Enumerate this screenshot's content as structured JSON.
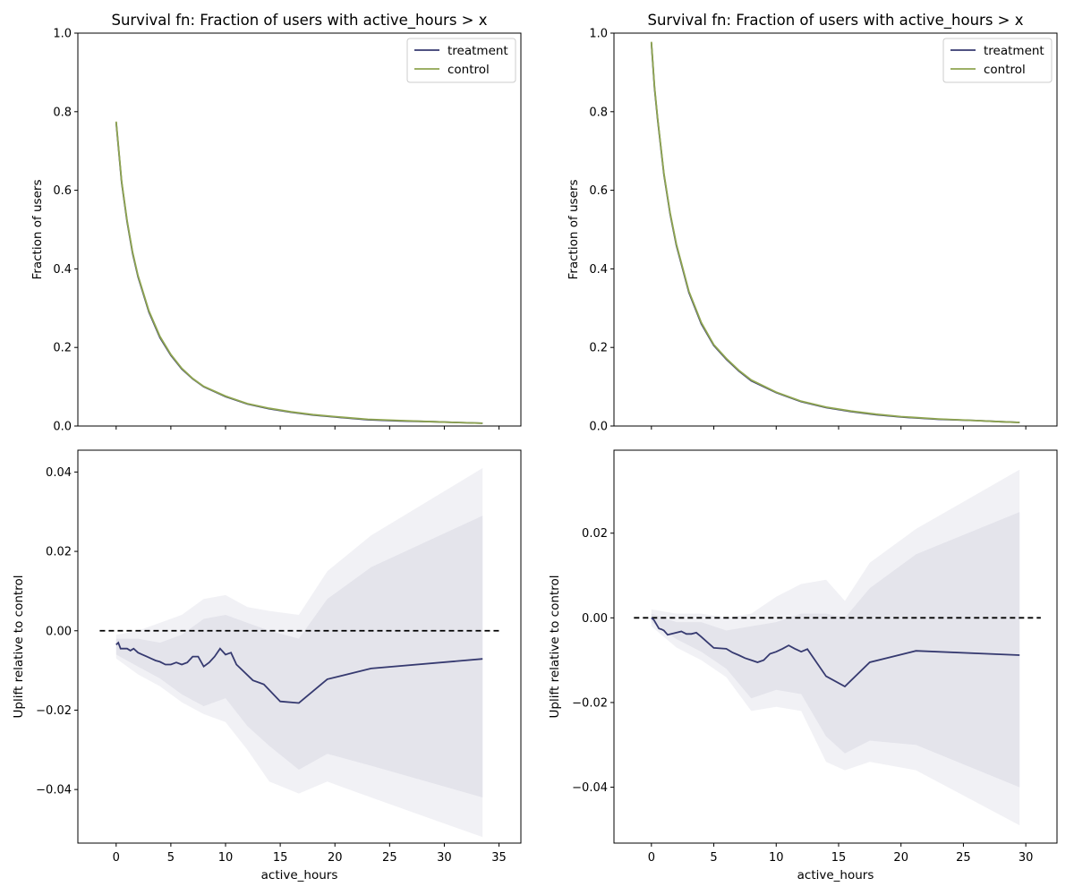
{
  "chart_data": [
    {
      "type": "line",
      "panel": "survival-left",
      "title": "Survival fn: Fraction of users with active_hours > x",
      "xlabel": "",
      "ylabel": "Fraction of users",
      "xlim": [
        -3.5,
        37
      ],
      "ylim": [
        0,
        1.0
      ],
      "xticks": [
        0,
        5,
        10,
        15,
        20,
        25,
        30,
        35
      ],
      "yticks": [
        0.0,
        0.2,
        0.4,
        0.6,
        0.8,
        1.0
      ],
      "ytick_labels": [
        "0.0",
        "0.2",
        "0.4",
        "0.6",
        "0.8",
        "1.0"
      ],
      "grid": false,
      "legend": {
        "position": "top-right",
        "entries": [
          "treatment",
          "control"
        ]
      },
      "series": [
        {
          "name": "treatment",
          "color": "#363a70",
          "x": [
            0,
            0.5,
            1,
            1.5,
            2,
            3,
            4,
            5,
            6,
            7,
            8,
            10,
            12,
            14,
            16,
            18,
            20,
            23,
            26,
            29,
            31,
            33.5
          ],
          "y": [
            0.772,
            0.62,
            0.52,
            0.44,
            0.38,
            0.29,
            0.225,
            0.18,
            0.145,
            0.12,
            0.1,
            0.075,
            0.056,
            0.044,
            0.035,
            0.028,
            0.023,
            0.016,
            0.013,
            0.011,
            0.009,
            0.007
          ]
        },
        {
          "name": "control",
          "color": "#8fa550",
          "x": [
            0,
            0.5,
            1,
            1.5,
            2,
            3,
            4,
            5,
            6,
            7,
            8,
            10,
            12,
            14,
            16,
            18,
            20,
            23,
            26,
            29,
            31,
            33.5
          ],
          "y": [
            0.775,
            0.623,
            0.523,
            0.443,
            0.383,
            0.293,
            0.228,
            0.182,
            0.147,
            0.121,
            0.101,
            0.076,
            0.057,
            0.045,
            0.036,
            0.029,
            0.024,
            0.017,
            0.014,
            0.011,
            0.009,
            0.007
          ]
        }
      ]
    },
    {
      "type": "line",
      "panel": "survival-right",
      "title": "Survival fn: Fraction of users with active_hours > x",
      "xlabel": "",
      "ylabel": "Fraction of users",
      "xlim": [
        -3,
        32.5
      ],
      "ylim": [
        0,
        1.0
      ],
      "xticks": [
        0,
        5,
        10,
        15,
        20,
        25,
        30
      ],
      "yticks": [
        0.0,
        0.2,
        0.4,
        0.6,
        0.8,
        1.0
      ],
      "ytick_labels": [
        "0.0",
        "0.2",
        "0.4",
        "0.6",
        "0.8",
        "1.0"
      ],
      "grid": false,
      "legend": {
        "position": "top-right",
        "entries": [
          "treatment",
          "control"
        ]
      },
      "series": [
        {
          "name": "treatment",
          "color": "#363a70",
          "x": [
            0,
            0.25,
            0.5,
            1,
            1.5,
            2,
            3,
            4,
            5,
            6,
            7,
            8,
            10,
            12,
            14,
            16,
            18,
            20,
            23,
            26,
            28,
            29.5
          ],
          "y": [
            0.975,
            0.86,
            0.78,
            0.64,
            0.54,
            0.46,
            0.34,
            0.26,
            0.205,
            0.17,
            0.14,
            0.115,
            0.085,
            0.062,
            0.047,
            0.037,
            0.029,
            0.023,
            0.017,
            0.014,
            0.011,
            0.009
          ]
        },
        {
          "name": "control",
          "color": "#8fa550",
          "x": [
            0,
            0.25,
            0.5,
            1,
            1.5,
            2,
            3,
            4,
            5,
            6,
            7,
            8,
            10,
            12,
            14,
            16,
            18,
            20,
            23,
            26,
            28,
            29.5
          ],
          "y": [
            0.978,
            0.863,
            0.783,
            0.643,
            0.543,
            0.463,
            0.343,
            0.263,
            0.207,
            0.172,
            0.142,
            0.117,
            0.086,
            0.063,
            0.048,
            0.038,
            0.03,
            0.024,
            0.018,
            0.014,
            0.011,
            0.009
          ]
        }
      ]
    },
    {
      "type": "line",
      "panel": "uplift-left",
      "title": "",
      "xlabel": "active_hours",
      "ylabel": "Uplift relative to control",
      "xlim": [
        -3.5,
        37
      ],
      "ylim": [
        -0.0535,
        0.0455
      ],
      "xticks": [
        0,
        5,
        10,
        15,
        20,
        25,
        30,
        35
      ],
      "yticks": [
        -0.04,
        -0.02,
        0.0,
        0.02,
        0.04
      ],
      "ytick_labels": [
        "−0.04",
        "−0.02",
        "0.00",
        "0.02",
        "0.04"
      ],
      "grid": false,
      "reference_line": {
        "y": 0,
        "x_range": [
          -1.5,
          35.2
        ],
        "style": "dashed"
      },
      "series": [
        {
          "name": "",
          "color": "#363a70",
          "x": [
            0,
            0.2,
            0.4,
            0.6,
            0.8,
            1.0,
            1.3,
            1.6,
            2,
            2.4,
            2.8,
            3.2,
            3.6,
            4.0,
            4.5,
            5.0,
            5.5,
            6.0,
            6.5,
            7.0,
            7.5,
            8.0,
            8.5,
            9.0,
            9.5,
            10.0,
            10.5,
            11.0,
            12.5,
            13.5,
            15.0,
            16.7,
            19.3,
            23.3,
            33.5
          ],
          "y": [
            -0.0035,
            -0.003,
            -0.0045,
            -0.0045,
            -0.0045,
            -0.0045,
            -0.005,
            -0.0045,
            -0.0055,
            -0.006,
            -0.0065,
            -0.007,
            -0.0075,
            -0.0078,
            -0.0085,
            -0.0085,
            -0.008,
            -0.0085,
            -0.008,
            -0.0065,
            -0.0065,
            -0.009,
            -0.008,
            -0.0065,
            -0.0045,
            -0.006,
            -0.0055,
            -0.0085,
            -0.0125,
            -0.0135,
            -0.0178,
            -0.0182,
            -0.0122,
            -0.0095,
            -0.0071
          ]
        },
        {
          "name": "",
          "role": "band-inner",
          "color": "#363a70",
          "x": [
            0,
            2,
            4,
            6,
            8,
            10,
            12,
            14,
            16.7,
            19.3,
            23.3,
            33.5
          ],
          "upper": [
            -0.002,
            -0.002,
            -0.003,
            -0.001,
            0.003,
            0.004,
            0.002,
            0.0,
            -0.002,
            0.008,
            0.016,
            0.029
          ],
          "lower": [
            -0.006,
            -0.009,
            -0.012,
            -0.016,
            -0.019,
            -0.017,
            -0.024,
            -0.029,
            -0.035,
            -0.031,
            -0.034,
            -0.042
          ]
        },
        {
          "name": "",
          "role": "band-outer",
          "color": "#363a70",
          "x": [
            0,
            2,
            4,
            6,
            8,
            10,
            12,
            14,
            16.7,
            19.3,
            23.3,
            33.5
          ],
          "upper": [
            -0.001,
            0.0,
            0.002,
            0.004,
            0.008,
            0.009,
            0.006,
            0.005,
            0.004,
            0.015,
            0.024,
            0.041
          ],
          "lower": [
            -0.007,
            -0.011,
            -0.014,
            -0.018,
            -0.021,
            -0.023,
            -0.03,
            -0.038,
            -0.041,
            -0.038,
            -0.042,
            -0.052
          ]
        }
      ]
    },
    {
      "type": "line",
      "panel": "uplift-right",
      "title": "",
      "xlabel": "active_hours",
      "ylabel": "Uplift relative to control",
      "xlim": [
        -3,
        32.5
      ],
      "ylim": [
        -0.0532,
        0.0396
      ],
      "xticks": [
        0,
        5,
        10,
        15,
        20,
        25,
        30
      ],
      "yticks": [
        -0.04,
        -0.02,
        0.0,
        0.02
      ],
      "ytick_labels": [
        "−0.04",
        "−0.02",
        "0.00",
        "0.02"
      ],
      "grid": false,
      "reference_line": {
        "y": 0,
        "x_range": [
          -1.4,
          31.2
        ],
        "style": "dashed"
      },
      "series": [
        {
          "name": "",
          "color": "#363a70",
          "x": [
            0,
            0.2,
            0.4,
            0.6,
            0.8,
            1.0,
            1.3,
            1.6,
            2.0,
            2.4,
            2.8,
            3.2,
            3.6,
            4.0,
            4.5,
            5.0,
            5.5,
            6.0,
            6.5,
            7.0,
            7.5,
            8.0,
            8.5,
            9.0,
            9.5,
            10.0,
            10.5,
            11.0,
            11.5,
            12.0,
            12.5,
            14.0,
            15.5,
            17.5,
            21.2,
            29.5
          ],
          "y": [
            0.0,
            -0.0005,
            -0.0015,
            -0.0025,
            -0.0027,
            -0.003,
            -0.004,
            -0.0038,
            -0.0035,
            -0.0032,
            -0.0038,
            -0.0038,
            -0.0035,
            -0.0045,
            -0.0058,
            -0.0071,
            -0.0072,
            -0.0073,
            -0.0082,
            -0.0088,
            -0.0095,
            -0.01,
            -0.0105,
            -0.01,
            -0.0085,
            -0.008,
            -0.0073,
            -0.0065,
            -0.0073,
            -0.008,
            -0.0074,
            -0.0138,
            -0.0162,
            -0.0105,
            -0.0078,
            -0.0088
          ]
        },
        {
          "name": "",
          "role": "band-inner",
          "color": "#363a70",
          "x": [
            0,
            2,
            4,
            6,
            8,
            10,
            12,
            14,
            15.5,
            17.5,
            21.2,
            29.5
          ],
          "upper": [
            0.001,
            -0.001,
            -0.001,
            -0.003,
            -0.002,
            -0.001,
            0.001,
            0.001,
            0.0,
            0.007,
            0.015,
            0.025
          ],
          "lower": [
            -0.001,
            -0.005,
            -0.008,
            -0.012,
            -0.019,
            -0.017,
            -0.018,
            -0.028,
            -0.032,
            -0.029,
            -0.03,
            -0.04
          ]
        },
        {
          "name": "",
          "role": "band-outer",
          "color": "#363a70",
          "x": [
            0,
            2,
            4,
            6,
            8,
            10,
            12,
            14,
            15.5,
            17.5,
            21.2,
            29.5
          ],
          "upper": [
            0.002,
            0.001,
            0.001,
            0.0,
            0.001,
            0.005,
            0.008,
            0.009,
            0.004,
            0.013,
            0.021,
            0.035
          ],
          "lower": [
            -0.002,
            -0.007,
            -0.01,
            -0.014,
            -0.022,
            -0.021,
            -0.022,
            -0.034,
            -0.036,
            -0.034,
            -0.036,
            -0.049
          ]
        }
      ]
    }
  ]
}
